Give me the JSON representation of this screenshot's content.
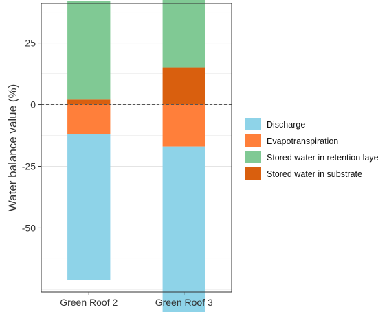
{
  "chart_data": {
    "type": "bar",
    "stacked": true,
    "ylabel": "Water balance value (%)",
    "xlabel": "",
    "ylim": [
      -76,
      41
    ],
    "yticks": [
      25,
      0,
      -25,
      -50
    ],
    "reference_line": 0,
    "grid": true,
    "legend_position": "right",
    "categories": [
      "Green Roof 2",
      "Green Roof 3"
    ],
    "series": [
      {
        "name": "Discharge",
        "color": "#8ed3e8",
        "values": [
          -59,
          -69
        ]
      },
      {
        "name": "Evapotranspiration",
        "color": "#ff7f3a",
        "values": [
          -12,
          -17
        ]
      },
      {
        "name": "Stored water in retention layer",
        "color": "#80c994",
        "values": [
          40,
          31
        ]
      },
      {
        "name": "Stored water in substrate",
        "color": "#d95f0e",
        "values": [
          2,
          15
        ]
      }
    ]
  }
}
